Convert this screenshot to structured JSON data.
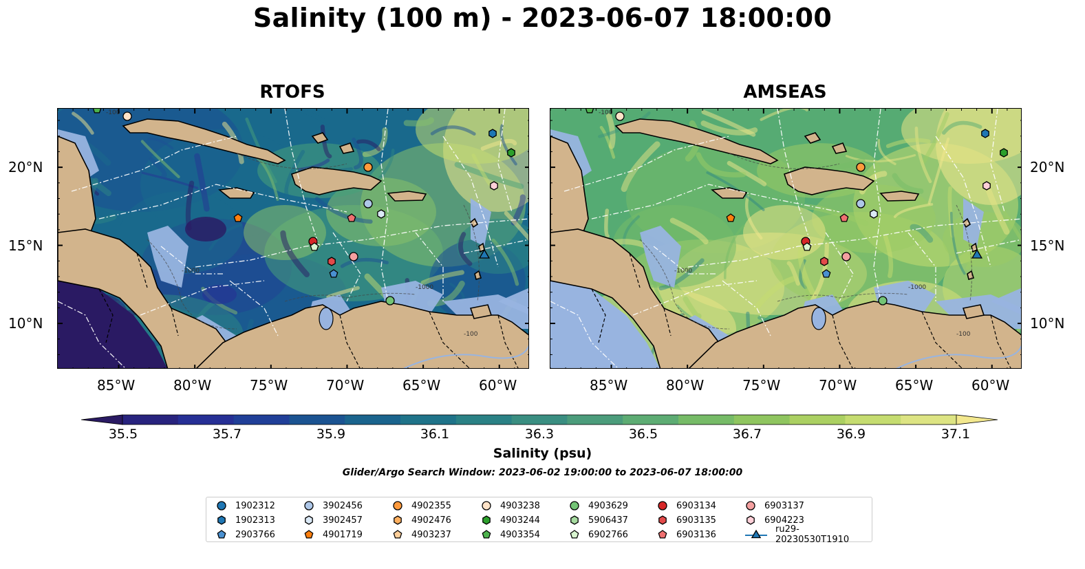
{
  "figure": {
    "title": "Salinity (100 m) - 2023-06-07 18:00:00",
    "colors": {
      "land": "#d2b48c",
      "shallow_water": "#98b4e0",
      "contour": "#555555",
      "track_lines": "#ffffff"
    }
  },
  "panels": [
    {
      "title": "RTOFS",
      "x_ticks": [
        "85°W",
        "80°W",
        "75°W",
        "70°W",
        "65°W",
        "60°W"
      ],
      "y_ticks": [],
      "palette": [
        "#2a1a63",
        "#253494",
        "#1c4f94",
        "#19698c",
        "#2d8683",
        "#47a07a",
        "#88c16a",
        "#c5dc70",
        "#f3e88e"
      ],
      "depth_contours": [
        "-100",
        "-1000"
      ]
    },
    {
      "title": "AMSEAS",
      "x_ticks": [
        "85°W",
        "80°W",
        "75°W",
        "70°W",
        "65°W",
        "60°W"
      ],
      "y_ticks": [
        "20°N",
        "15°N",
        "10°N"
      ],
      "palette": [
        "#2d8683",
        "#3d967e",
        "#56ab73",
        "#76bb67",
        "#9bcb65",
        "#c6dc70",
        "#e8e485",
        "#f3e88e"
      ],
      "depth_contours": [
        "-100",
        "-1000"
      ]
    }
  ],
  "left_axis_y_ticks": [
    "20°N",
    "15°N",
    "10°N"
  ],
  "colorbar": {
    "label": "Salinity (psu)",
    "ticks": [
      "35.5",
      "35.7",
      "35.9",
      "36.1",
      "36.3",
      "36.5",
      "36.7",
      "36.9",
      "37.1"
    ],
    "range": [
      35.5,
      37.2
    ],
    "extend": "both",
    "colors": [
      "#2a1a63",
      "#28237e",
      "#262f95",
      "#203f98",
      "#1b5391",
      "#1a648d",
      "#1f7389",
      "#2a8185",
      "#3a8e81",
      "#4b9c7b",
      "#5dac73",
      "#76bb67",
      "#8fc55f",
      "#abd062",
      "#c5dc70",
      "#dde483",
      "#f3e88e"
    ]
  },
  "search_window": "Glider/Argo Search Window: 2023-06-02 19:00:00 to 2023-06-07 18:00:00",
  "legend": {
    "entries": [
      {
        "label": "1902312",
        "marker": "circle",
        "color": "#1f77b4"
      },
      {
        "label": "1902313",
        "marker": "hexagon",
        "color": "#1f77b4"
      },
      {
        "label": "2903766",
        "marker": "pentagon",
        "color": "#4a90d0"
      },
      {
        "label": "3902456",
        "marker": "circle",
        "color": "#aec7e8"
      },
      {
        "label": "3902457",
        "marker": "hexagon",
        "color": "#dbe9f6"
      },
      {
        "label": "4901719",
        "marker": "pentagon",
        "color": "#ff7f0e"
      },
      {
        "label": "4902355",
        "marker": "circle",
        "color": "#ff9a3c"
      },
      {
        "label": "4902476",
        "marker": "hexagon",
        "color": "#ffb060"
      },
      {
        "label": "4903237",
        "marker": "pentagon",
        "color": "#ffcf9a"
      },
      {
        "label": "4903238",
        "marker": "circle",
        "color": "#ffe3c8"
      },
      {
        "label": "4903244",
        "marker": "hexagon",
        "color": "#2ca02c"
      },
      {
        "label": "4903354",
        "marker": "pentagon",
        "color": "#4db34d"
      },
      {
        "label": "4903629",
        "marker": "circle",
        "color": "#74c476"
      },
      {
        "label": "5906437",
        "marker": "hexagon",
        "color": "#a6dba0"
      },
      {
        "label": "6902766",
        "marker": "pentagon",
        "color": "#d9f5d0"
      },
      {
        "label": "6903134",
        "marker": "circle",
        "color": "#d62728"
      },
      {
        "label": "6903135",
        "marker": "hexagon",
        "color": "#e34a4a"
      },
      {
        "label": "6903136",
        "marker": "pentagon",
        "color": "#ef7070"
      },
      {
        "label": "6903137",
        "marker": "circle",
        "color": "#f4a0a0"
      },
      {
        "label": "6904223",
        "marker": "hexagon",
        "color": "#ffd0d8"
      },
      {
        "label": "ru29-20230530T1910",
        "marker": "triangle",
        "color": "#1f77b4"
      }
    ]
  }
}
